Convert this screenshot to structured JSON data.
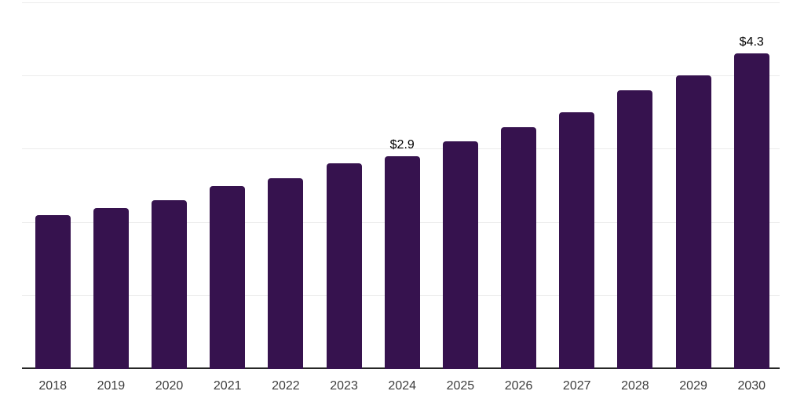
{
  "chart_data": {
    "type": "bar",
    "categories": [
      "2018",
      "2019",
      "2020",
      "2021",
      "2022",
      "2023",
      "2024",
      "2025",
      "2026",
      "2027",
      "2028",
      "2029",
      "2030"
    ],
    "values": [
      2.1,
      2.2,
      2.3,
      2.5,
      2.6,
      2.8,
      2.9,
      3.1,
      3.3,
      3.5,
      3.8,
      4.0,
      4.3
    ],
    "data_labels": {
      "2024": "$2.9",
      "2030": "$4.3"
    },
    "title": "",
    "xlabel": "",
    "ylabel": "",
    "ylim": [
      0,
      5
    ],
    "gridline_interval": 1,
    "grid": "horizontal",
    "legend": "none",
    "colors": {
      "bar": "#36124E",
      "gridline": "#ececec",
      "axis_line": "#262626",
      "tick_label": "#3d3d3d",
      "data_label": "#000000",
      "background": "#ffffff"
    }
  }
}
